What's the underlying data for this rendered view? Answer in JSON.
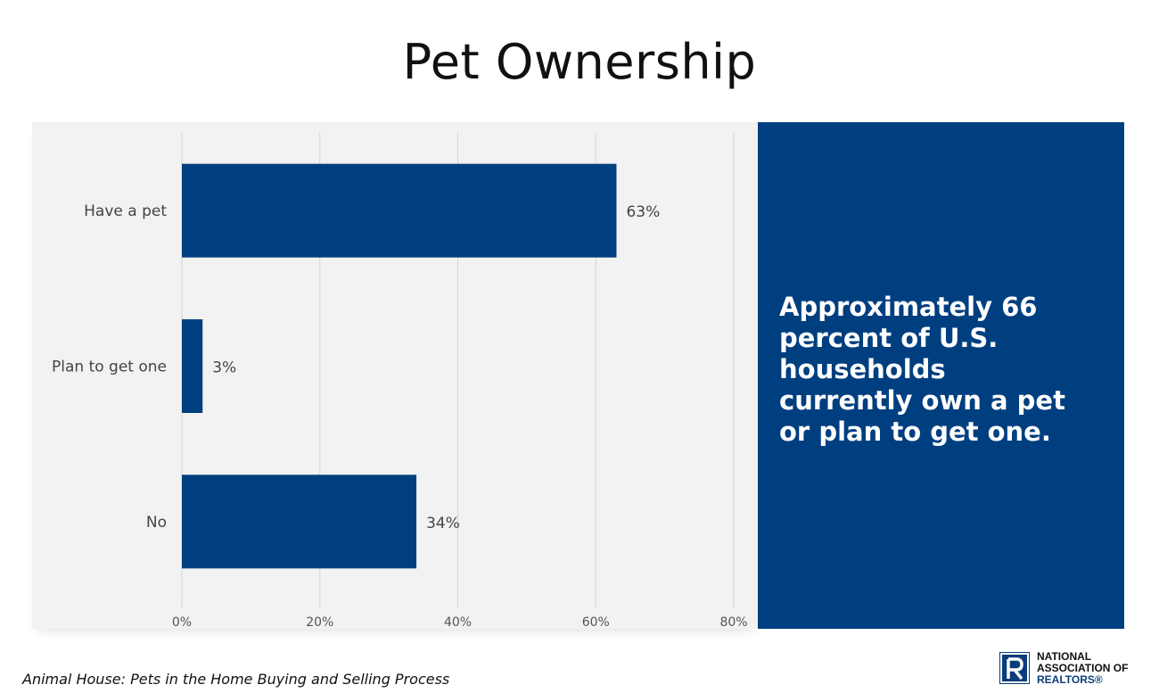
{
  "slide": {
    "title": "Pet Ownership",
    "callout": "Approximately 66 percent of U.S. households currently own a pet or plan to get one.",
    "source": "Animal House: Pets in the Home Buying and Selling Process"
  },
  "logo": {
    "line1": "NATIONAL",
    "line2": "ASSOCIATION OF",
    "line3": "REALTORS®"
  },
  "colors": {
    "bar": "#003f7f",
    "callout_bg": "#003f7f",
    "panel_bg": "#f2f2f2"
  },
  "chart_data": {
    "type": "bar",
    "orientation": "horizontal",
    "categories": [
      "Have a pet",
      "Plan to get one",
      "No"
    ],
    "values": [
      63,
      3,
      34
    ],
    "value_labels": [
      "63%",
      "3%",
      "34%"
    ],
    "xlim": [
      0,
      80
    ],
    "x_ticks": [
      0,
      20,
      40,
      60,
      80
    ],
    "x_tick_labels": [
      "0%",
      "20%",
      "40%",
      "60%",
      "80%"
    ],
    "grid": true
  }
}
